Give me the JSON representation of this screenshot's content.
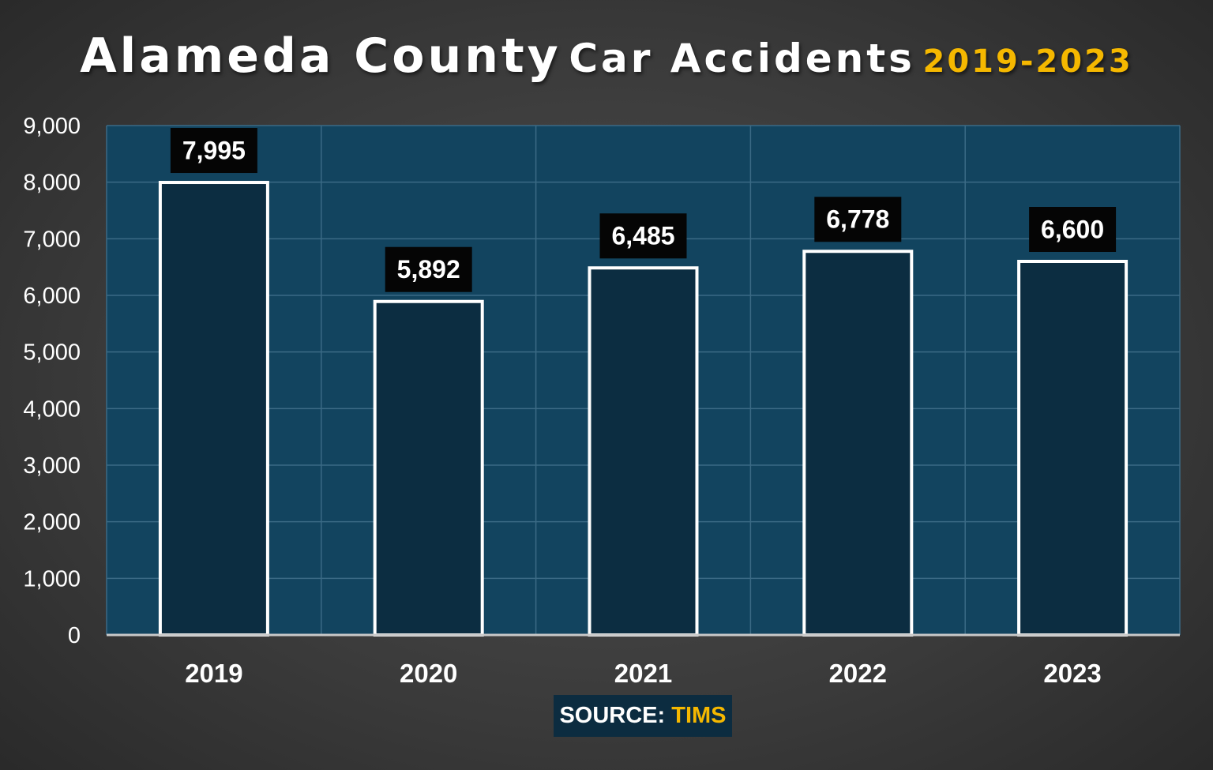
{
  "title": {
    "part1": "Alameda County",
    "part2": "Car Accidents",
    "part3": "2019-2023",
    "highlight_color": "#f5b800"
  },
  "source": {
    "label": "SOURCE:",
    "value": "TIMS"
  },
  "colors": {
    "plot_background": "#12445f",
    "bar_fill": "#0c2d41",
    "bar_outline": "#ffffff",
    "label_box": "#050505",
    "accent": "#f5b800"
  },
  "chart_data": {
    "type": "bar",
    "categories": [
      "2019",
      "2020",
      "2021",
      "2022",
      "2023"
    ],
    "values": [
      7995,
      5892,
      6485,
      6778,
      6600
    ],
    "data_labels": [
      "7,995",
      "5,892",
      "6,485",
      "6,778",
      "6,600"
    ],
    "ylim": [
      0,
      9000
    ],
    "yticks": [
      0,
      1000,
      2000,
      3000,
      4000,
      5000,
      6000,
      7000,
      8000,
      9000
    ],
    "ytick_labels": [
      "0",
      "1,000",
      "2,000",
      "3,000",
      "4,000",
      "5,000",
      "6,000",
      "7,000",
      "8,000",
      "9,000"
    ],
    "grid": true,
    "title": "Alameda County Car Accidents 2019-2023",
    "xlabel": "",
    "ylabel": ""
  }
}
